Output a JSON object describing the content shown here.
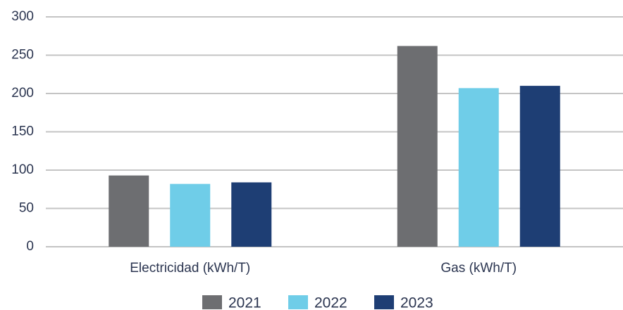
{
  "chart_data": {
    "type": "bar",
    "categories": [
      "Electricidad (kWh/T)",
      "Gas (kWh/T)"
    ],
    "series": [
      {
        "name": "2021",
        "color": "#6d6e71",
        "values": [
          93,
          262
        ]
      },
      {
        "name": "2022",
        "color": "#6fcde8",
        "values": [
          82,
          207
        ]
      },
      {
        "name": "2023",
        "color": "#1e3e74",
        "values": [
          84,
          210
        ]
      }
    ],
    "ylim": [
      0,
      300
    ],
    "yticks": [
      0,
      50,
      100,
      150,
      200,
      250,
      300
    ],
    "grid": true,
    "legend": "bottom"
  }
}
